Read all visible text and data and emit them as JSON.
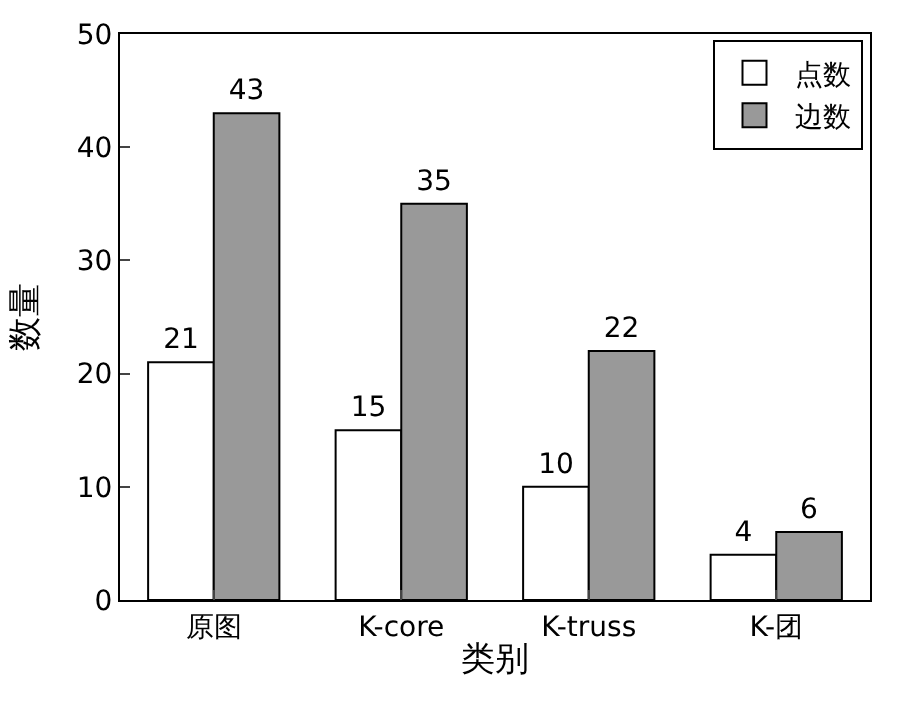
{
  "chart_data": {
    "type": "bar",
    "xlabel": "类别",
    "ylabel": "数量",
    "categories": [
      "原图",
      "K-core",
      "K-truss",
      "K-团"
    ],
    "series": [
      {
        "name": "点数",
        "color": "#ffffff",
        "values": [
          21,
          15,
          10,
          4
        ]
      },
      {
        "name": "边数",
        "color": "#999999",
        "values": [
          43,
          35,
          22,
          6
        ]
      }
    ],
    "ylim": [
      0,
      50
    ],
    "yticks": [
      0,
      10,
      20,
      30,
      40,
      50
    ],
    "data_labels": true,
    "legend": "top right"
  }
}
